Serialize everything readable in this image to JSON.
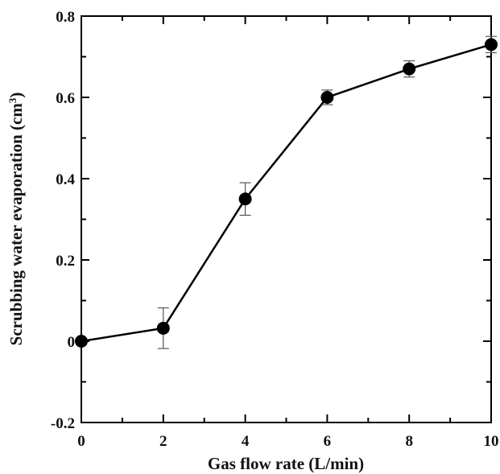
{
  "chart_data": {
    "type": "line",
    "xlabel": "Gas flow rate (L/min)",
    "ylabel": {
      "prefix": "Scrubbing water evaporation (cm",
      "superscript": "3",
      "suffix": ")"
    },
    "xlim": [
      0,
      10
    ],
    "ylim": [
      -0.2,
      0.8
    ],
    "x_ticks": [
      "0",
      "2",
      "4",
      "6",
      "8",
      "10"
    ],
    "y_ticks": [
      "-0.2",
      "0",
      "0.2",
      "0.4",
      "0.6",
      "0.8"
    ],
    "grid": false,
    "legend": false,
    "series": [
      {
        "x": [
          0,
          2,
          4,
          6,
          8,
          10
        ],
        "y": [
          0.0,
          0.032,
          0.35,
          0.6,
          0.67,
          0.73
        ],
        "error": [
          0.0,
          0.05,
          0.04,
          0.018,
          0.02,
          0.02
        ],
        "color": "#000000",
        "marker": "filled-circle"
      }
    ]
  }
}
